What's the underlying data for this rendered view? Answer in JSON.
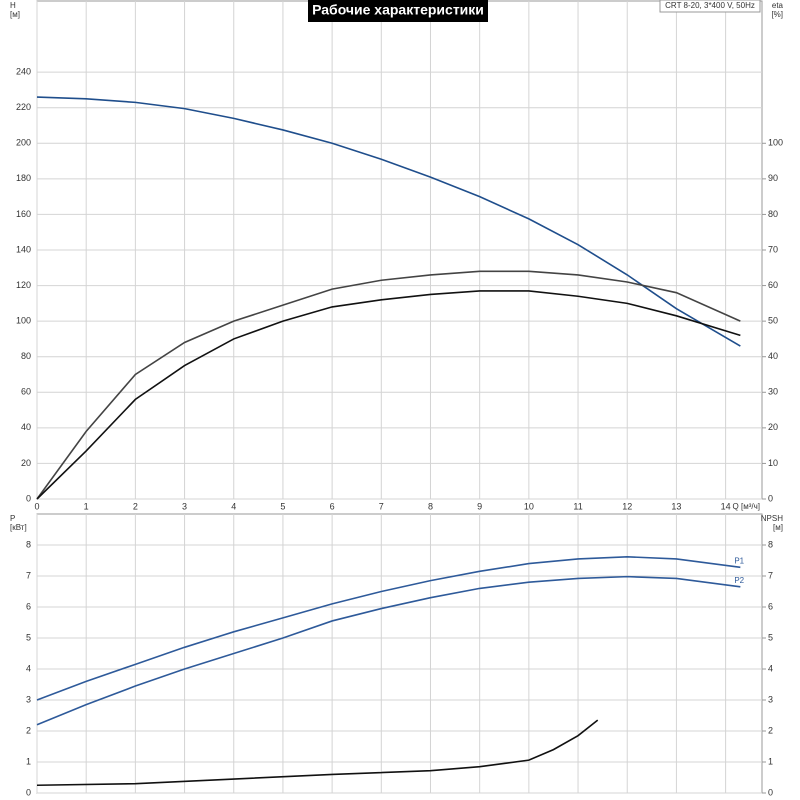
{
  "chart_data": [
    {
      "type": "line",
      "title": "Рабочие характеристики",
      "annotation": "CRT 8-20, 3*400 V, 50Hz",
      "ylabel": "H",
      "yunit": "[м]",
      "y2label": "eta",
      "y2unit": "[%]",
      "xlabel": "Q [м³/ч]",
      "xlim": [
        0,
        14.74
      ],
      "xticks": [
        0,
        1,
        2,
        3,
        4,
        5,
        6,
        7,
        8,
        9,
        10,
        11,
        12,
        13,
        14
      ],
      "ylim": [
        0,
        280
      ],
      "yticks": [
        0,
        20,
        40,
        60,
        80,
        100,
        120,
        140,
        160,
        180,
        200,
        220,
        240
      ],
      "y2lim": [
        0,
        140
      ],
      "y2ticks": [
        0,
        10,
        20,
        30,
        40,
        50,
        60,
        70,
        80,
        90,
        100
      ],
      "grid": true,
      "series": [
        {
          "color": "#1f4e8c",
          "x": [
            0,
            1,
            2,
            3,
            4,
            5,
            6,
            7,
            8,
            9,
            10,
            11,
            12,
            13,
            14.3
          ],
          "values": [
            226,
            225,
            223,
            219.5,
            214,
            207.5,
            200,
            191,
            181,
            170,
            157.5,
            143,
            126,
            107,
            86
          ]
        },
        {
          "color": "#444444",
          "axis": "y2",
          "x": [
            0,
            1,
            2,
            3,
            4,
            5,
            6,
            7,
            8,
            9,
            10,
            11,
            12,
            13,
            14.3
          ],
          "values": [
            0,
            19,
            35,
            44,
            50,
            54.5,
            59,
            61.5,
            63,
            64,
            64,
            63,
            61,
            58,
            50
          ]
        },
        {
          "color": "#111111",
          "axis": "y2",
          "x": [
            0,
            1,
            2,
            3,
            4,
            5,
            6,
            7,
            8,
            9,
            10,
            11,
            12,
            13,
            14.3
          ],
          "values": [
            0,
            13.5,
            28,
            37.5,
            45,
            50,
            54,
            56,
            57.5,
            58.5,
            58.5,
            57,
            55,
            51.5,
            46
          ]
        }
      ]
    },
    {
      "type": "line",
      "ylabel": "P",
      "yunit": "[кВт]",
      "y2label": "NPSH",
      "y2unit": "[м]",
      "xlim": [
        0,
        14.74
      ],
      "xticks": [
        0,
        1,
        2,
        3,
        4,
        5,
        6,
        7,
        8,
        9,
        10,
        11,
        12,
        13,
        14
      ],
      "ylim": [
        0,
        9
      ],
      "yticks": [
        0,
        1,
        2,
        3,
        4,
        5,
        6,
        7,
        8
      ],
      "y2lim": [
        0,
        9
      ],
      "y2ticks": [
        0,
        1,
        2,
        3,
        4,
        5,
        6,
        7,
        8
      ],
      "grid": true,
      "series": [
        {
          "name": "P1",
          "color": "#2e5a9a",
          "x": [
            0,
            1,
            2,
            3,
            4,
            5,
            6,
            7,
            8,
            9,
            10,
            11,
            12,
            13,
            14.3
          ],
          "values": [
            3.0,
            3.6,
            4.15,
            4.7,
            5.2,
            5.65,
            6.1,
            6.5,
            6.85,
            7.15,
            7.4,
            7.55,
            7.62,
            7.55,
            7.28
          ]
        },
        {
          "name": "P2",
          "color": "#2e5a9a",
          "x": [
            0,
            1,
            2,
            3,
            4,
            5,
            6,
            7,
            8,
            9,
            10,
            11,
            12,
            13,
            14.3
          ],
          "values": [
            2.2,
            2.85,
            3.45,
            4.0,
            4.5,
            5.0,
            5.55,
            5.95,
            6.3,
            6.6,
            6.8,
            6.92,
            6.98,
            6.92,
            6.65
          ]
        },
        {
          "color": "#111111",
          "axis": "y2",
          "x": [
            0,
            2,
            4,
            6,
            8,
            9,
            10,
            10.5,
            11,
            11.4
          ],
          "values": [
            0.25,
            0.3,
            0.45,
            0.6,
            0.72,
            0.85,
            1.06,
            1.4,
            1.85,
            2.35
          ]
        }
      ]
    }
  ]
}
